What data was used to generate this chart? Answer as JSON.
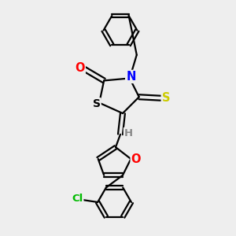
{
  "bg_color": "#eeeeee",
  "atom_colors": {
    "N": "#0000ff",
    "O": "#ff0000",
    "S_thioxo": "#cccc00",
    "S_ring": "#000000",
    "Cl": "#00bb00",
    "C": "#000000",
    "H": "#888888"
  },
  "bond_color": "#000000",
  "bond_width": 1.6,
  "fig_size": [
    3.0,
    3.0
  ],
  "dpi": 100
}
